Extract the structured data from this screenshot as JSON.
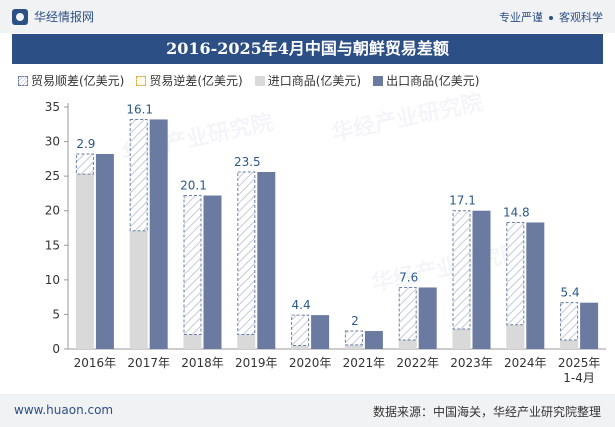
{
  "header": {
    "brand": "华经情报网",
    "tags": [
      "专业严谨",
      "客观科学"
    ]
  },
  "footer": {
    "site": "www.huaon.com",
    "source": "数据来源：中国海关，华经产业研究院整理"
  },
  "colors": {
    "export": "#6b7aa1",
    "import": "#d9d9d9",
    "surplus_border": "#6b7fa8",
    "label": "#2c5a8a",
    "header": "#2c4f86"
  },
  "chart_data": {
    "type": "bar",
    "title": "2016-2025年4月中国与朝鲜贸易差额",
    "ylabel": "",
    "xlabel": "",
    "ylim": [
      0,
      35
    ],
    "yticks": [
      0,
      5,
      10,
      15,
      20,
      25,
      30,
      35
    ],
    "grid": false,
    "legend_position": "top",
    "categories": [
      "2016年",
      "2017年",
      "2018年",
      "2019年",
      "2020年",
      "2021年",
      "2022年",
      "2023年",
      "2024年",
      "2025年 1-4月"
    ],
    "series": [
      {
        "name": "贸易顺差(亿美元)",
        "values": [
          2.9,
          16.1,
          20.1,
          23.5,
          4.4,
          2,
          7.6,
          17.1,
          14.8,
          5.4
        ]
      },
      {
        "name": "贸易逆差(亿美元)",
        "values": [
          0,
          0,
          0,
          0,
          0,
          0,
          0,
          0,
          0,
          0
        ]
      },
      {
        "name": "进口商品(亿美元)",
        "values": [
          25.3,
          17.1,
          2.1,
          2.1,
          0.5,
          0.6,
          1.3,
          2.9,
          3.5,
          1.3
        ]
      },
      {
        "name": "出口商品(亿美元)",
        "values": [
          28.2,
          33.2,
          22.2,
          25.6,
          4.9,
          2.6,
          8.9,
          20.0,
          18.3,
          6.7
        ]
      }
    ],
    "data_labels": [
      "2.9",
      "16.1",
      "20.1",
      "23.5",
      "4.4",
      "2",
      "7.6",
      "17.1",
      "14.8",
      "5.4"
    ]
  }
}
